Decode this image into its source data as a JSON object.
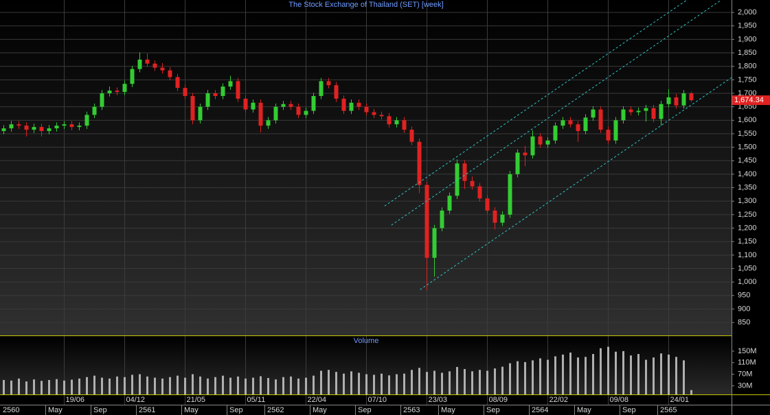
{
  "chart_data": {
    "type": "candlestick",
    "title": "The Stock Exchange of Thailand (SET) [week]",
    "categories": [
      null,
      null,
      null,
      null,
      null,
      null,
      null,
      null,
      "19/06",
      null,
      null,
      null,
      null,
      null,
      null,
      null,
      "04/12",
      null,
      null,
      null,
      null,
      null,
      null,
      null,
      "21/05",
      null,
      null,
      null,
      null,
      null,
      null,
      null,
      "05/11",
      null,
      null,
      null,
      null,
      null,
      null,
      null,
      "22/04",
      null,
      null,
      null,
      null,
      null,
      null,
      null,
      "07/10",
      null,
      null,
      null,
      null,
      null,
      null,
      null,
      "23/03",
      null,
      null,
      null,
      null,
      null,
      null,
      null,
      "08/09",
      null,
      null,
      null,
      null,
      null,
      null,
      null,
      "22/02",
      null,
      null,
      null,
      null,
      null,
      null,
      null,
      "09/08",
      null,
      null,
      null,
      null,
      null,
      null,
      null,
      "24/01",
      null,
      null,
      null
    ],
    "periods": [
      "2560",
      null,
      null,
      null,
      null,
      null,
      "May",
      null,
      null,
      null,
      null,
      null,
      "Sep",
      null,
      null,
      null,
      null,
      null,
      "2561",
      null,
      null,
      null,
      null,
      null,
      "May",
      null,
      null,
      null,
      null,
      null,
      "Sep",
      null,
      null,
      null,
      null,
      "2562",
      null,
      null,
      null,
      null,
      null,
      "May",
      null,
      null,
      null,
      null,
      null,
      "Sep",
      null,
      null,
      null,
      null,
      null,
      "2563",
      null,
      null,
      null,
      null,
      "May",
      null,
      null,
      null,
      null,
      null,
      "Sep",
      null,
      null,
      null,
      null,
      null,
      "2564",
      null,
      null,
      null,
      null,
      null,
      "May",
      null,
      null,
      null,
      null,
      null,
      "Sep",
      null,
      null,
      null,
      null,
      "2565",
      null,
      null,
      null,
      null
    ],
    "open": [
      1560,
      1570,
      1585,
      1580,
      1565,
      1575,
      1560,
      1570,
      1580,
      1585,
      1575,
      1580,
      1620,
      1650,
      1700,
      1710,
      1705,
      1735,
      1790,
      1825,
      1810,
      1795,
      1785,
      1760,
      1720,
      1690,
      1600,
      1650,
      1700,
      1690,
      1725,
      1745,
      1680,
      1640,
      1665,
      1580,
      1600,
      1650,
      1660,
      1650,
      1620,
      1635,
      1690,
      1745,
      1730,
      1680,
      1635,
      1665,
      1650,
      1630,
      1620,
      1615,
      1585,
      1600,
      1565,
      1520,
      1360,
      1090,
      1200,
      1265,
      1320,
      1440,
      1375,
      1355,
      1310,
      1265,
      1220,
      1250,
      1400,
      1480,
      1470,
      1540,
      1510,
      1525,
      1580,
      1600,
      1585,
      1560,
      1610,
      1640,
      1565,
      1525,
      1600,
      1640,
      1630,
      1635,
      1645,
      1605,
      1660,
      1685,
      1655,
      1700
    ],
    "high": [
      1582,
      1597,
      1597,
      1592,
      1587,
      1587,
      1582,
      1592,
      1597,
      1597,
      1592,
      1632,
      1662,
      1712,
      1725,
      1722,
      1747,
      1802,
      1852,
      1848,
      1822,
      1812,
      1797,
      1772,
      1732,
      1702,
      1662,
      1712,
      1712,
      1737,
      1765,
      1757,
      1692,
      1677,
      1677,
      1612,
      1662,
      1672,
      1672,
      1662,
      1647,
      1702,
      1757,
      1757,
      1742,
      1692,
      1677,
      1677,
      1662,
      1642,
      1632,
      1627,
      1612,
      1612,
      1577,
      1532,
      1372,
      1212,
      1277,
      1332,
      1455,
      1452,
      1392,
      1367,
      1322,
      1277,
      1262,
      1412,
      1492,
      1505,
      1562,
      1552,
      1537,
      1592,
      1612,
      1612,
      1597,
      1622,
      1652,
      1652,
      1577,
      1612,
      1652,
      1652,
      1647,
      1657,
      1657,
      1672,
      1715,
      1697,
      1712,
      1706
    ],
    "low": [
      1548,
      1558,
      1568,
      1540,
      1553,
      1540,
      1548,
      1558,
      1568,
      1563,
      1563,
      1568,
      1608,
      1638,
      1688,
      1693,
      1693,
      1723,
      1778,
      1798,
      1783,
      1773,
      1748,
      1708,
      1678,
      1585,
      1588,
      1638,
      1678,
      1678,
      1713,
      1668,
      1628,
      1628,
      1555,
      1568,
      1588,
      1638,
      1638,
      1608,
      1608,
      1623,
      1678,
      1718,
      1668,
      1623,
      1623,
      1638,
      1618,
      1608,
      1603,
      1573,
      1573,
      1553,
      1508,
      1330,
      969,
      1020,
      1188,
      1253,
      1308,
      1345,
      1343,
      1298,
      1253,
      1195,
      1208,
      1238,
      1388,
      1430,
      1458,
      1498,
      1498,
      1513,
      1568,
      1573,
      1520,
      1548,
      1598,
      1553,
      1513,
      1513,
      1588,
      1618,
      1618,
      1595,
      1593,
      1580,
      1648,
      1643,
      1643,
      1668
    ],
    "close": [
      1570,
      1585,
      1580,
      1565,
      1575,
      1560,
      1570,
      1580,
      1585,
      1575,
      1580,
      1620,
      1650,
      1700,
      1710,
      1705,
      1735,
      1790,
      1825,
      1810,
      1795,
      1785,
      1760,
      1720,
      1690,
      1600,
      1650,
      1700,
      1690,
      1725,
      1745,
      1680,
      1640,
      1665,
      1580,
      1600,
      1650,
      1660,
      1650,
      1620,
      1635,
      1690,
      1745,
      1730,
      1680,
      1635,
      1665,
      1650,
      1630,
      1620,
      1615,
      1585,
      1600,
      1565,
      1520,
      1360,
      1090,
      1200,
      1265,
      1320,
      1440,
      1375,
      1355,
      1310,
      1265,
      1220,
      1250,
      1400,
      1480,
      1470,
      1540,
      1510,
      1525,
      1580,
      1600,
      1585,
      1560,
      1610,
      1640,
      1565,
      1525,
      1600,
      1640,
      1630,
      1635,
      1645,
      1605,
      1660,
      1685,
      1655,
      1700,
      1674.34
    ],
    "last_price_label": "1,674.34",
    "up_color": "#33cc33",
    "down_color": "#e02222",
    "ylim": [
      802,
      2046
    ],
    "yticks": [
      850,
      900,
      950,
      {
        "value": 1000,
        "label": "1,000"
      },
      {
        "value": 1050,
        "label": "1,050"
      },
      {
        "value": 1100,
        "label": "1,100"
      },
      {
        "value": 1150,
        "label": "1,150"
      },
      {
        "value": 1200,
        "label": "1,200"
      },
      {
        "value": 1250,
        "label": "1,250"
      },
      {
        "value": 1300,
        "label": "1,300"
      },
      {
        "value": 1350,
        "label": "1,350"
      },
      {
        "value": 1400,
        "label": "1,400"
      },
      {
        "value": 1450,
        "label": "1,450"
      },
      {
        "value": 1500,
        "label": "1,500"
      },
      {
        "value": 1550,
        "label": "1,550"
      },
      {
        "value": 1600,
        "label": "1,600"
      },
      {
        "value": 1650,
        "label": "1,650"
      },
      {
        "value": 1700,
        "label": "1,700"
      },
      {
        "value": 1750,
        "label": "1,750"
      },
      {
        "value": 1800,
        "label": "1,800"
      },
      {
        "value": 1850,
        "label": "1,850"
      },
      {
        "value": 1900,
        "label": "1,900"
      },
      {
        "value": 1950,
        "label": "1,950"
      },
      {
        "value": 2000,
        "label": "2,000"
      }
    ],
    "grid": true,
    "trend_lines": [
      {
        "x": [
          55.1,
          96.3
        ],
        "y": [
          972,
          1758
        ]
      },
      {
        "x": [
          51.3,
          94.95
        ],
        "y": [
          1211,
          2046
        ]
      },
      {
        "x": [
          50.4,
          90.4
        ],
        "y": [
          1282,
          2046
        ]
      }
    ],
    "trend_color": "#33c8c8",
    "volume_title": "Volume",
    "volume": [
      50,
      48,
      55,
      45,
      52,
      47,
      50,
      53,
      48,
      51,
      55,
      60,
      65,
      58,
      55,
      62,
      60,
      68,
      70,
      62,
      58,
      55,
      60,
      65,
      58,
      70,
      62,
      55,
      60,
      65,
      58,
      62,
      55,
      58,
      63,
      57,
      52,
      60,
      62,
      55,
      58,
      65,
      82,
      85,
      78,
      72,
      80,
      75,
      70,
      68,
      72,
      66,
      70,
      72,
      85,
      92,
      78,
      82,
      75,
      80,
      95,
      88,
      80,
      85,
      82,
      90,
      96,
      108,
      115,
      112,
      118,
      125,
      120,
      132,
      138,
      145,
      128,
      130,
      140,
      160,
      165,
      148,
      150,
      135,
      140,
      120,
      128,
      142,
      138,
      130,
      118,
      15
    ],
    "volume_color": "#b0b0b0",
    "volume_ylim": [
      0,
      202
    ],
    "volume_yticks": [
      {
        "value": 30,
        "label": "30M"
      },
      {
        "value": 70,
        "label": "70M"
      },
      {
        "value": 110,
        "label": "110M"
      },
      {
        "value": 150,
        "label": "150M"
      }
    ]
  }
}
